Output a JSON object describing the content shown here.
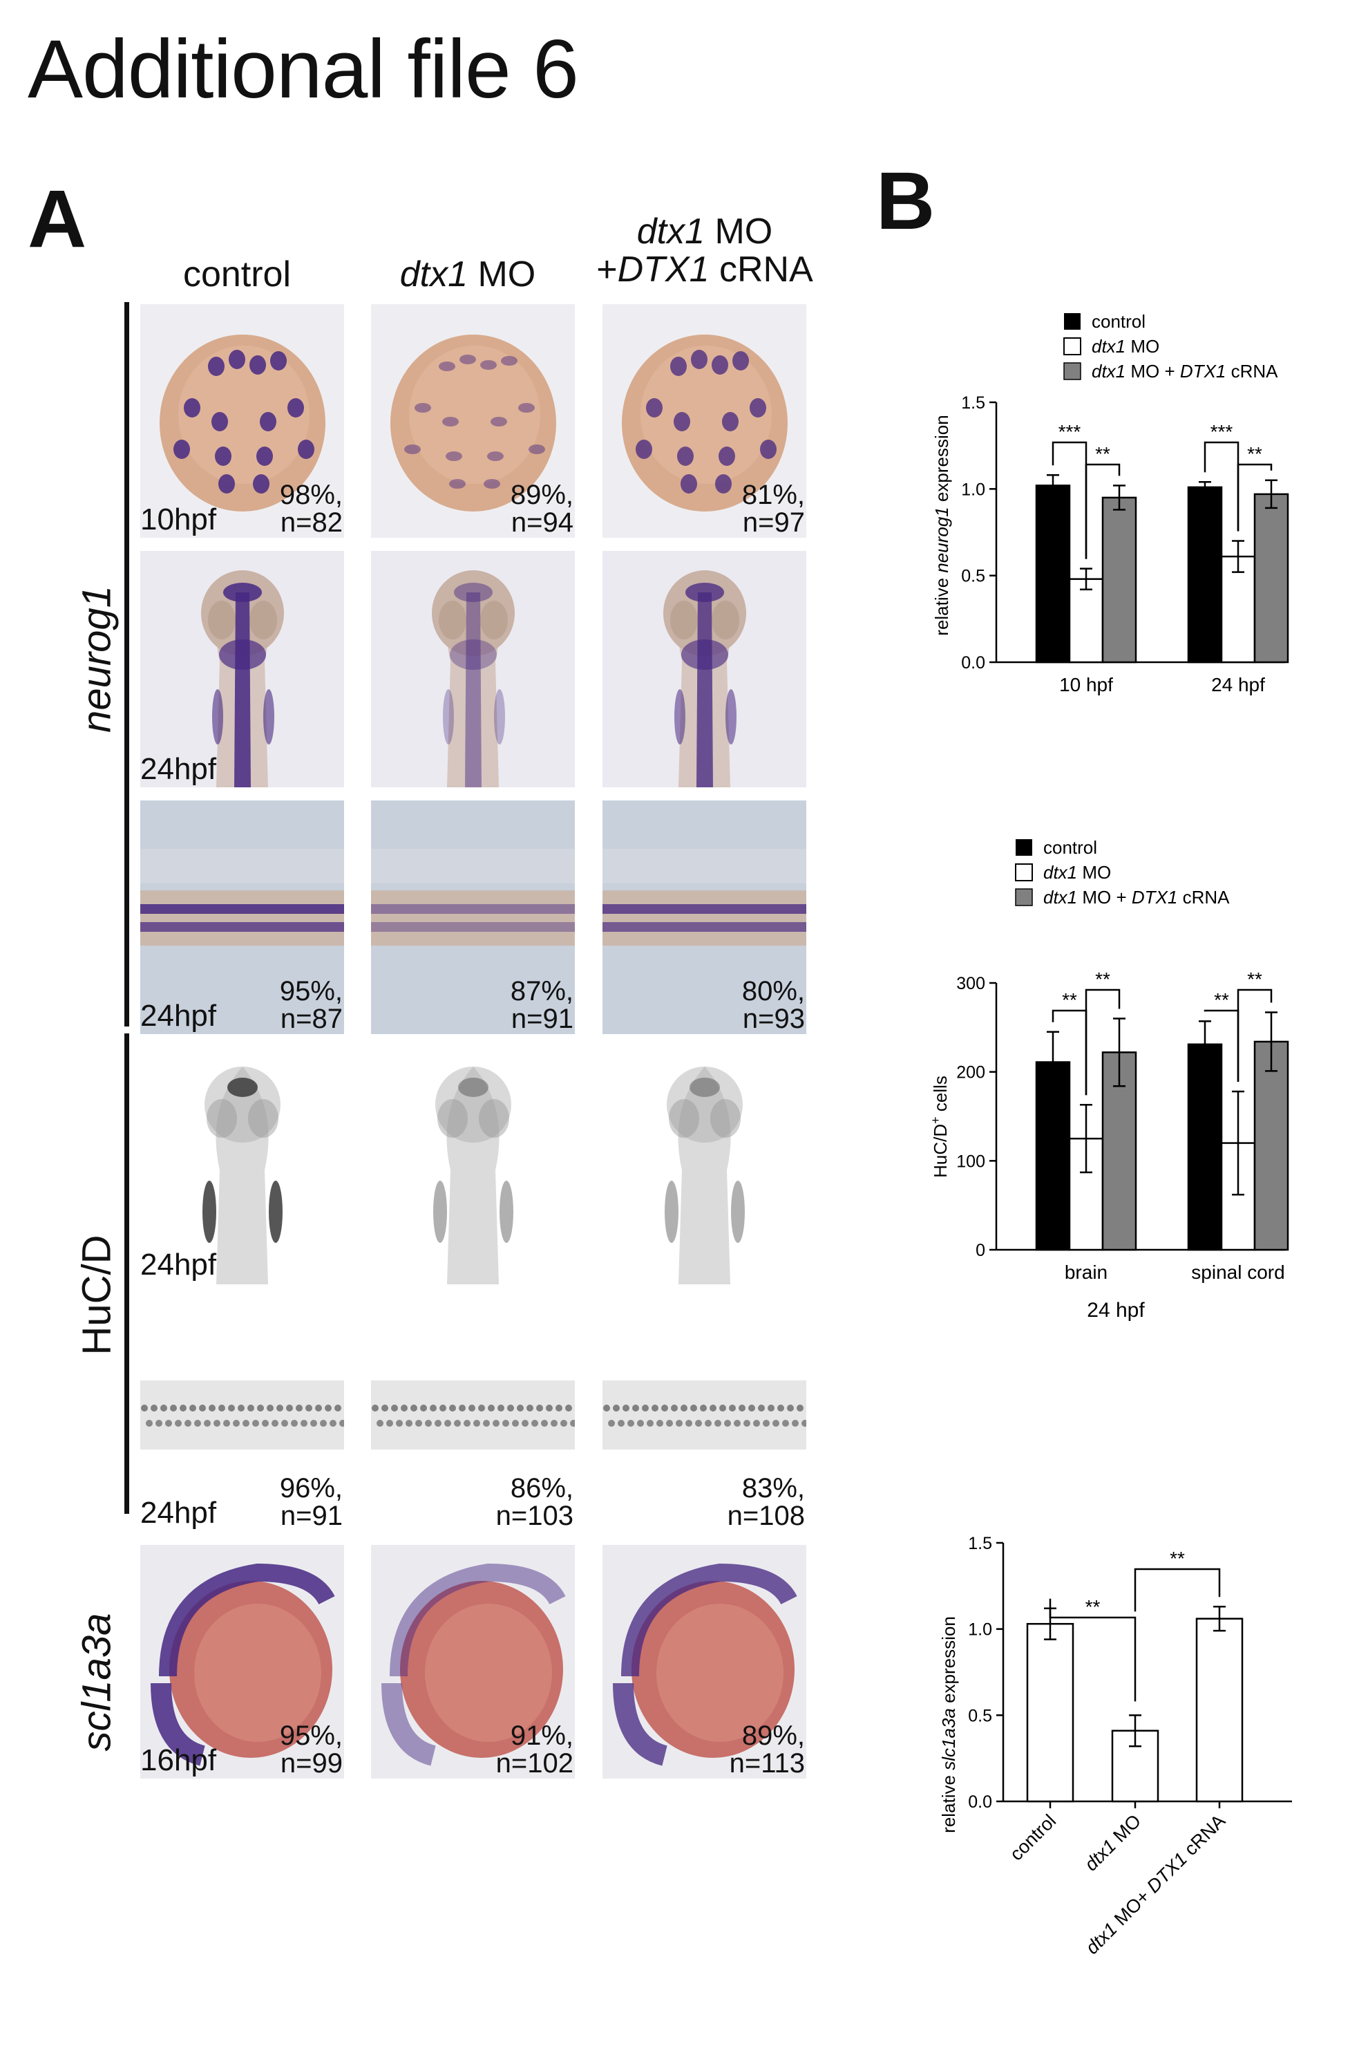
{
  "title": "Additional file 6",
  "panel_a": {
    "letter": "A",
    "columns": [
      {
        "pre": "",
        "italic": "",
        "post": "control",
        "line2_pre": "",
        "line2_italic": "",
        "line2_post": ""
      },
      {
        "pre": "",
        "italic": "dtx1",
        "post": " MO",
        "line2_pre": "",
        "line2_italic": "",
        "line2_post": ""
      },
      {
        "pre": "",
        "italic": "dtx1",
        "post": " MO",
        "line2_pre": "+",
        "line2_italic": "DTX1",
        "line2_post": " cRNA"
      }
    ],
    "row_labels": {
      "neurog1": "neurog1",
      "hucd": "HuC/D",
      "scl1a3a": "scl1a3a"
    },
    "rows": [
      {
        "stage": "10hpf",
        "stats": [
          [
            "98%,",
            "n=82"
          ],
          [
            "89%,",
            "n=94"
          ],
          [
            "81%,",
            "n=97"
          ]
        ]
      },
      {
        "stage": "24hpf",
        "stats": [
          [
            "",
            ""
          ],
          [
            "",
            ""
          ],
          [
            "",
            ""
          ]
        ]
      },
      {
        "stage": "24hpf",
        "stats": [
          [
            "95%,",
            "n=87"
          ],
          [
            "87%,",
            "n=91"
          ],
          [
            "80%,",
            "n=93"
          ]
        ]
      },
      {
        "stage": "24hpf",
        "stats": [
          [
            "",
            ""
          ],
          [
            "",
            ""
          ],
          [
            "",
            ""
          ]
        ]
      },
      {
        "stage": "24hpf",
        "stats": [
          [
            "96%,",
            "n=91"
          ],
          [
            "86%,",
            "n=103"
          ],
          [
            "83%,",
            "n=108"
          ]
        ]
      },
      {
        "stage": "16hpf",
        "stats": [
          [
            "95%,",
            "n=99"
          ],
          [
            "91%,",
            "n=102"
          ],
          [
            "89%,",
            "n=113"
          ]
        ]
      }
    ]
  },
  "panel_b": {
    "letter": "B",
    "colors": {
      "control": "#000000",
      "dtx1_mo": "#ffffff",
      "rescue": "#808080"
    },
    "chart_data": [
      {
        "type": "bar",
        "legend": [
          {
            "italic": "",
            "text": "control"
          },
          {
            "italic": "dtx1",
            "text": " MO"
          },
          {
            "italic": "dtx1",
            "text": " MO + ",
            "italic2": "DTX1",
            "text2": " cRNA"
          }
        ],
        "ylabel_pre": "relative ",
        "ylabel_italic": "neurog1",
        "ylabel_post": " expression",
        "ylim": [
          0,
          1.5
        ],
        "yticks": [
          "0.0",
          "0.5",
          "1.0",
          "1.5"
        ],
        "categories": [
          "10 hpf",
          "24 hpf"
        ],
        "series": [
          {
            "name": "control",
            "values": [
              1.02,
              1.01
            ],
            "errors": [
              0.06,
              0.03
            ]
          },
          {
            "name": "dtx1 MO",
            "values": [
              0.48,
              0.61
            ],
            "errors": [
              0.06,
              0.09
            ]
          },
          {
            "name": "dtx1 MO + DTX1 cRNA",
            "values": [
              0.95,
              0.97
            ],
            "errors": [
              0.07,
              0.08
            ]
          }
        ],
        "significance": [
          [
            "***",
            "**"
          ],
          [
            "***",
            "**"
          ]
        ]
      },
      {
        "type": "bar",
        "legend": [
          {
            "italic": "",
            "text": "control"
          },
          {
            "italic": "dtx1",
            "text": " MO"
          },
          {
            "italic": "dtx1",
            "text": " MO + ",
            "italic2": "DTX1",
            "text2": " cRNA"
          }
        ],
        "ylabel_pre": "HuC/D",
        "ylabel_sup": "+",
        "ylabel_post": " cells",
        "ylim": [
          0,
          300
        ],
        "yticks": [
          "0",
          "100",
          "200",
          "300"
        ],
        "categories": [
          "brain",
          "spinal cord"
        ],
        "xlabel": "24 hpf",
        "series": [
          {
            "name": "control",
            "values": [
              211,
              231
            ],
            "errors": [
              34,
              26
            ]
          },
          {
            "name": "dtx1 MO",
            "values": [
              125,
              120
            ],
            "errors": [
              38,
              58
            ]
          },
          {
            "name": "dtx1 MO + DTX1 cRNA",
            "values": [
              222,
              234
            ],
            "errors": [
              38,
              33
            ]
          }
        ],
        "significance": [
          [
            "**",
            "**"
          ],
          [
            "**",
            "**"
          ]
        ]
      },
      {
        "type": "bar",
        "ylabel_pre": "relative ",
        "ylabel_italic": "slc1a3a",
        "ylabel_post": " expression",
        "ylim": [
          0,
          1.5
        ],
        "yticks": [
          "0.0",
          "0.5",
          "1.0",
          "1.5"
        ],
        "categories": [
          {
            "italic": "",
            "text": "control"
          },
          {
            "italic": "dtx1",
            "text": " MO"
          },
          {
            "italic": "dtx1",
            "text": " MO+ ",
            "italic2": "DTX1",
            "text2": " cRNA"
          }
        ],
        "values": [
          1.03,
          0.41,
          1.06
        ],
        "errors": [
          0.09,
          0.09,
          0.07
        ],
        "significance": [
          "**",
          "**"
        ]
      }
    ]
  }
}
